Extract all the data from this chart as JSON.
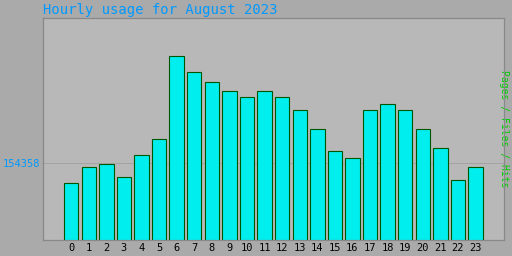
{
  "title": "Hourly usage for August 2023",
  "title_color": "#0099ff",
  "ylabel": "Pages / Files / Hits",
  "ylabel_color": "#00cc00",
  "background_color": "#aaaaaa",
  "plot_background_color": "#b8b8b8",
  "bar_face_color": "#00eeee",
  "bar_edge_color": "#005500",
  "bar_edge_width": 0.8,
  "ytick_label": "154358",
  "ytick_color": "#0099ff",
  "xtick_color": "#000000",
  "grid_color": "#9a9a9a",
  "hours": [
    0,
    1,
    2,
    3,
    4,
    5,
    6,
    7,
    8,
    9,
    10,
    11,
    12,
    13,
    14,
    15,
    16,
    17,
    18,
    19,
    20,
    21,
    22,
    23
  ],
  "values": [
    148000,
    153000,
    154000,
    150000,
    157000,
    162000,
    188000,
    183000,
    180000,
    177000,
    175000,
    177000,
    175000,
    171000,
    165000,
    158000,
    156000,
    171000,
    173000,
    171000,
    165000,
    159000,
    149000,
    153000
  ],
  "ylim_min": 130000,
  "ylim_max": 200000,
  "ytick_val": 154358,
  "bar_width": 0.82,
  "font_family": "monospace",
  "title_fontsize": 10,
  "tick_fontsize": 7.5,
  "ylabel_fontsize": 7
}
